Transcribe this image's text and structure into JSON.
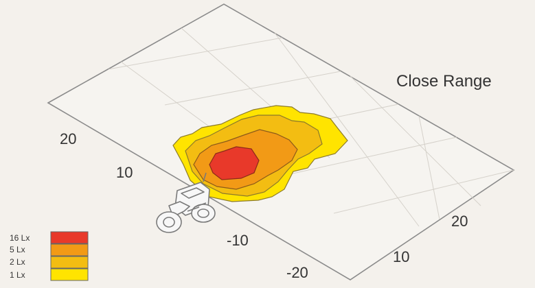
{
  "diagram": {
    "title": "Close Range",
    "y_axis_ticks": [
      "20",
      "10",
      "-10",
      "-20"
    ],
    "x_axis_ticks": [
      "20",
      "10"
    ],
    "legend": [
      {
        "label": "16 Lx",
        "color": "#e8392a"
      },
      {
        "label": "5 Lx",
        "color": "#f29a16"
      },
      {
        "label": "2 Lx",
        "color": "#f3bd12"
      },
      {
        "label": "1 Lx",
        "color": "#ffe400"
      }
    ],
    "icons": {
      "vehicle": "tractor-icon"
    },
    "colors": {
      "grid": "#c8c4bd",
      "outline": "#6f6f6f",
      "background": "#f4f1ec"
    }
  }
}
